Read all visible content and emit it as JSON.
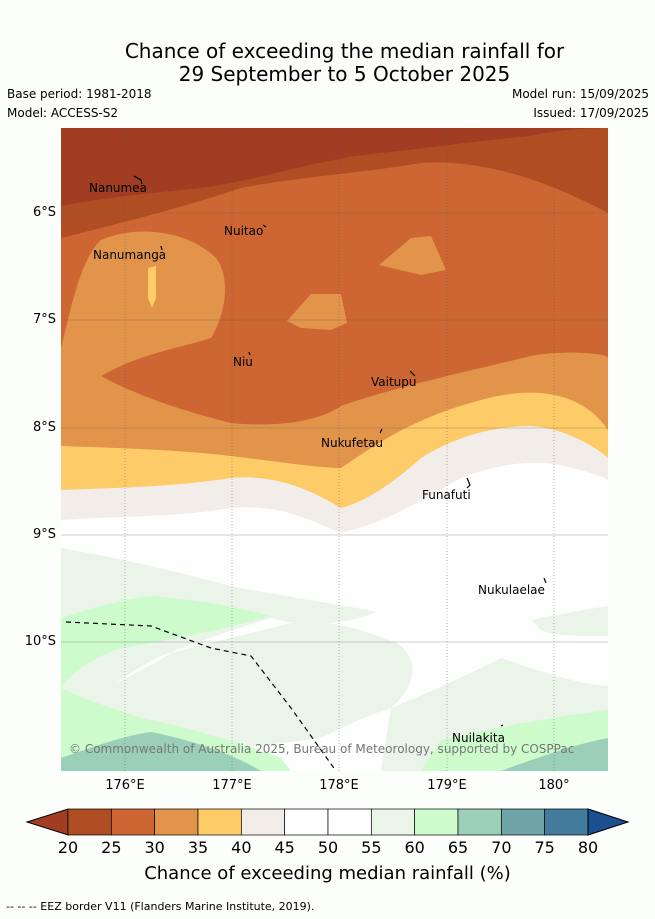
{
  "title_line1": "Chance of exceeding the median rainfall for",
  "title_line2": "29 September to 5 October 2025",
  "meta": {
    "base_period": "Base period: 1981-2018",
    "model": "Model: ACCESS-S2",
    "model_run": "Model run: 15/09/2025",
    "issued": "Issued: 17/09/2025"
  },
  "lat_labels": [
    "6°S",
    "7°S",
    "8°S",
    "9°S",
    "10°S"
  ],
  "lon_labels": [
    "176°E",
    "177°E",
    "178°E",
    "179°E",
    "180°"
  ],
  "places": {
    "nanumea": "Nanumea",
    "nuitao": "Nuitao",
    "nanumanga": "Nanumanga",
    "niu": "Niu",
    "vaitupu": "Vaitupu",
    "nukufetau": "Nukufetau",
    "funafuti": "Funafuti",
    "nukulaelae": "Nukulaelae",
    "nuilakita": "Nuilakita"
  },
  "copyright": "© Commonwealth of Australia 2025, Bureau of Meteorology, supported by COSPPac",
  "colorbar": {
    "ticks": [
      "20",
      "25",
      "30",
      "35",
      "40",
      "45",
      "50",
      "55",
      "60",
      "65",
      "70",
      "75",
      "80"
    ],
    "colors": [
      "#b14d23",
      "#cd6632",
      "#e1944a",
      "#fdcb67",
      "#f2ede8",
      "#fdfefd",
      "#fdfefd",
      "#eaf4e9",
      "#cdfbcc",
      "#9ccfb8",
      "#6ea3a7",
      "#427b9c"
    ],
    "under_color": "#a13d22",
    "over_color": "#1b4f8f",
    "title": "Chance of exceeding median rainfall (%)"
  },
  "legend_text": "-- -- -- EEZ border V11 (Flanders Marine Institute, 2019)."
}
